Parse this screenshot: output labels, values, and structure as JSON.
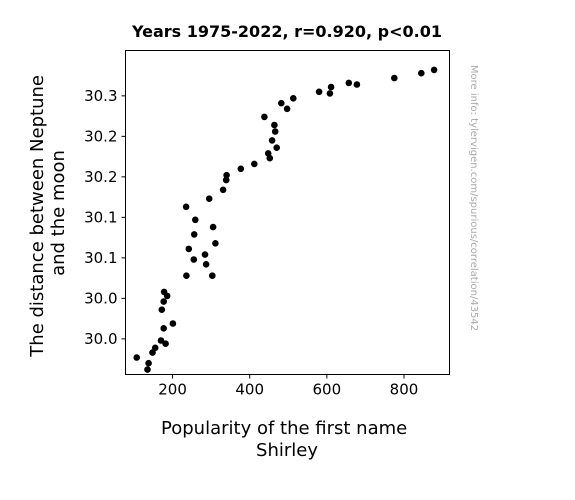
{
  "chart_data": {
    "type": "scatter",
    "title": "Years 1975-2022, r=0.920, p<0.01",
    "xlabel_lines": [
      "Popularity of the first name",
      "Shirley"
    ],
    "ylabel_lines": [
      "The distance between Neptune",
      "and the moon"
    ],
    "side_note": "More info: tylervigen.com/spurious/correlation/43542",
    "x_ticks": [
      200,
      400,
      600,
      800
    ],
    "y_ticks": [
      {
        "value": 30.0,
        "label": "30.0"
      },
      {
        "value": 30.05,
        "label": "30.0"
      },
      {
        "value": 30.1,
        "label": "30.1"
      },
      {
        "value": 30.15,
        "label": "30.1"
      },
      {
        "value": 30.2,
        "label": "30.2"
      },
      {
        "value": 30.25,
        "label": "30.2"
      },
      {
        "value": 30.3,
        "label": "30.3"
      }
    ],
    "xlim": [
      78,
      918
    ],
    "ylim": [
      29.956,
      30.356
    ],
    "grid": false,
    "marker_color": "#000000",
    "points": [
      [
        107,
        29.977
      ],
      [
        138,
        29.97
      ],
      [
        135,
        29.962
      ],
      [
        148,
        29.983
      ],
      [
        155,
        29.989
      ],
      [
        170,
        29.998
      ],
      [
        182,
        29.994
      ],
      [
        177,
        30.013
      ],
      [
        201,
        30.019
      ],
      [
        172,
        30.036
      ],
      [
        177,
        30.046
      ],
      [
        178,
        30.058
      ],
      [
        186,
        30.053
      ],
      [
        236,
        30.078
      ],
      [
        255,
        30.098
      ],
      [
        242,
        30.111
      ],
      [
        284,
        30.104
      ],
      [
        287,
        30.092
      ],
      [
        303,
        30.078
      ],
      [
        311,
        30.118
      ],
      [
        256,
        30.129
      ],
      [
        305,
        30.138
      ],
      [
        259,
        30.147
      ],
      [
        235,
        30.163
      ],
      [
        295,
        30.173
      ],
      [
        331,
        30.184
      ],
      [
        339,
        30.196
      ],
      [
        340,
        30.202
      ],
      [
        377,
        30.21
      ],
      [
        412,
        30.216
      ],
      [
        448,
        30.229
      ],
      [
        452,
        30.223
      ],
      [
        470,
        30.236
      ],
      [
        458,
        30.245
      ],
      [
        466,
        30.256
      ],
      [
        464,
        30.264
      ],
      [
        438,
        30.274
      ],
      [
        482,
        30.291
      ],
      [
        497,
        30.284
      ],
      [
        513,
        30.297
      ],
      [
        580,
        30.305
      ],
      [
        608,
        30.303
      ],
      [
        611,
        30.311
      ],
      [
        657,
        30.316
      ],
      [
        678,
        30.314
      ],
      [
        775,
        30.322
      ],
      [
        845,
        30.328
      ],
      [
        878,
        30.332
      ]
    ]
  }
}
